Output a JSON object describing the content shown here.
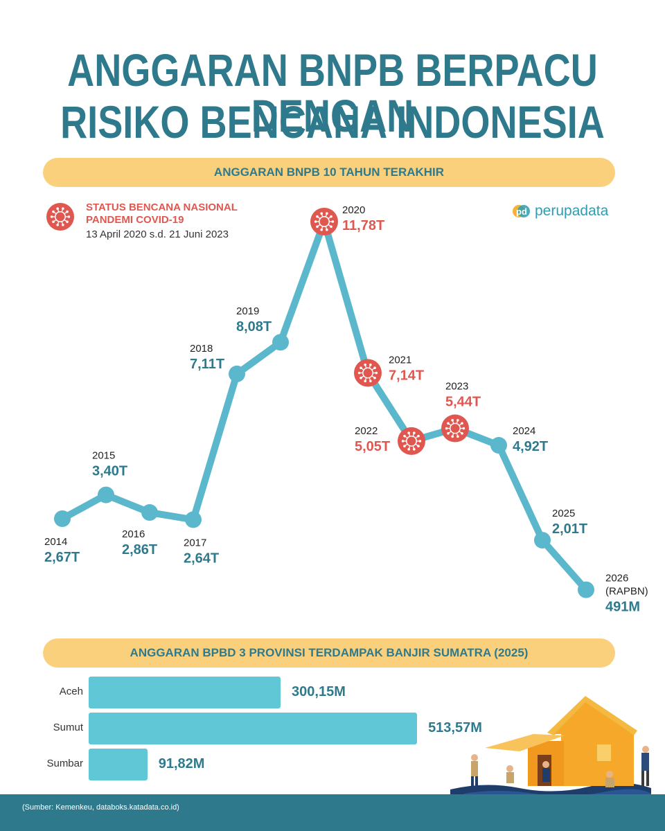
{
  "title": {
    "line1": "ANGGARAN BNPB BERPACU DENGAN",
    "line2": "RISIKO BENCANA INDONESIA"
  },
  "section1": {
    "title": "ANGGARAN BNPB 10 TAHUN TERAKHIR"
  },
  "legend": {
    "title_line1": "STATUS BENCANA NASIONAL",
    "title_line2": "PANDEMI COVID-19",
    "period": "13 April 2020 s.d. 21 Juni 2023",
    "icon": "virus-icon"
  },
  "logo": {
    "mark": "pd",
    "text": "perupadata"
  },
  "colors": {
    "title": "#2e7a8c",
    "accent_pill": "#fbd07c",
    "line": "#5ab7cc",
    "value_text": "#2e7a8c",
    "pandemic": "#e0574f",
    "bar": "#5fc7d6",
    "footer": "#2e7a8c"
  },
  "chart_data": [
    {
      "type": "line",
      "title": "ANGGARAN BNPB 10 TAHUN TERAKHIR",
      "x": [
        "2014",
        "2015",
        "2016",
        "2017",
        "2018",
        "2019",
        "2020",
        "2021",
        "2022",
        "2023",
        "2024",
        "2025",
        "2026"
      ],
      "x_notes": [
        "",
        "",
        "",
        "",
        "",
        "",
        "",
        "",
        "",
        "",
        "",
        "",
        "(RAPBN)"
      ],
      "values": [
        2.67,
        3.4,
        2.86,
        2.64,
        7.11,
        8.08,
        11.78,
        7.14,
        5.05,
        5.44,
        4.92,
        2.01,
        0.491
      ],
      "value_labels": [
        "2,67T",
        "3,40T",
        "2,86T",
        "2,64T",
        "7,11T",
        "8,08T",
        "11,78T",
        "7,14T",
        "5,05T",
        "5,44T",
        "4,92T",
        "2,01T",
        "491M"
      ],
      "unit": "Rp triliun",
      "pandemic_years": [
        "2020",
        "2021",
        "2022",
        "2023"
      ],
      "xlabel": "",
      "ylabel": "",
      "ylim": [
        0,
        12
      ],
      "grid": false
    },
    {
      "type": "bar",
      "orientation": "horizontal",
      "title": "ANGGARAN BPBD 3 PROVINSI TERDAMPAK BANJIR SUMATRA (2025)",
      "categories": [
        "Aceh",
        "Sumut",
        "Sumbar"
      ],
      "values": [
        300.15,
        513.57,
        91.82
      ],
      "value_labels": [
        "300,15M",
        "513,57M",
        "91,82M"
      ],
      "unit": "Rp miliar",
      "xlabel": "",
      "ylabel": "",
      "xlim": [
        0,
        520
      ],
      "grid": false
    }
  ],
  "section2": {
    "title": "ANGGARAN BPBD 3 PROVINSI TERDAMPAK BANJIR SUMATRA (2025)"
  },
  "footer": {
    "source": "(Sumber: Kemenkeu, databoks.katadata.co.id)"
  }
}
